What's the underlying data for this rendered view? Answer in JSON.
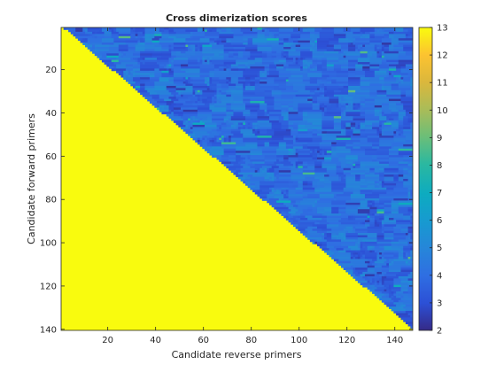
{
  "chart_data": {
    "type": "heatmap",
    "title": "Cross dimerization scores",
    "xlabel": "Candidate reverse primers",
    "ylabel": "Candidate forward primers",
    "x_range": [
      1,
      147
    ],
    "y_range": [
      1,
      140
    ],
    "y_direction": "reverse",
    "x_ticks": [
      "20",
      "40",
      "60",
      "80",
      "100",
      "120",
      "140"
    ],
    "y_ticks": [
      "20",
      "40",
      "60",
      "80",
      "100",
      "120",
      "140"
    ],
    "colorbar": {
      "range": [
        2,
        13
      ],
      "ticks": [
        "2",
        "3",
        "4",
        "5",
        "6",
        "7",
        "8",
        "9",
        "10",
        "11",
        "12",
        "13"
      ],
      "colormap": "parula"
    },
    "structure": "Cells where the reverse-primer index is below the diagonal boundary (from about x=1 at y=1 to x=147 at y=140) have the maximum score 13; remaining cells mostly score 3 to 5 with occasional 6 to 9 values.",
    "background_value": 13,
    "typical_off_diagonal_range": [
      3,
      5
    ],
    "grid": false,
    "legend": "none"
  }
}
